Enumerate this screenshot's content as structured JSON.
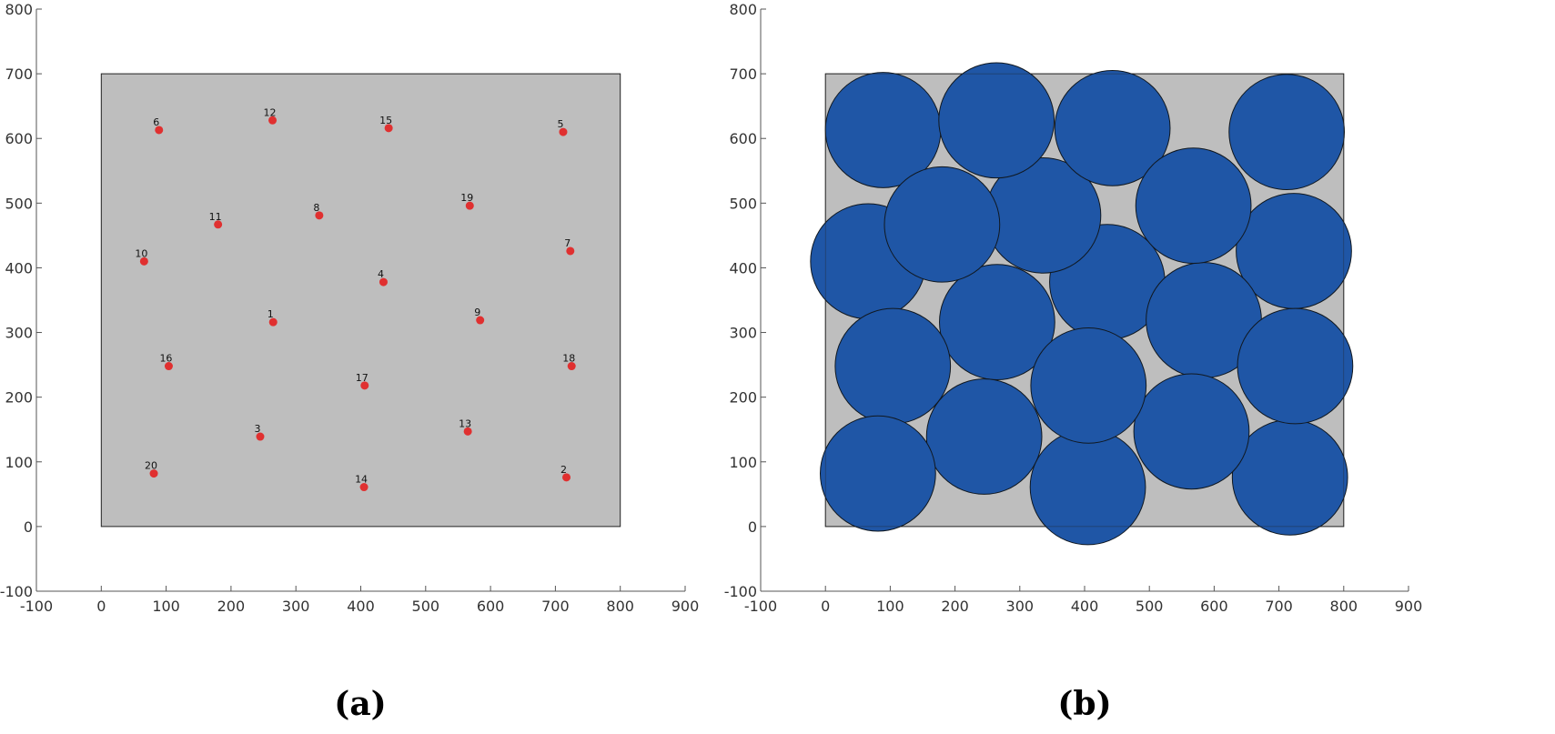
{
  "chart_data": [
    {
      "type": "scatter",
      "caption": "(a)",
      "xlim": [
        -100,
        900
      ],
      "ylim": [
        -100,
        800
      ],
      "x_ticks": [
        "-100",
        "0",
        "100",
        "200",
        "300",
        "400",
        "500",
        "600",
        "700",
        "800",
        "900"
      ],
      "y_ticks": [
        "-100",
        "0",
        "100",
        "200",
        "300",
        "400",
        "500",
        "600",
        "700",
        "800"
      ],
      "grid": false,
      "region": {
        "x": [
          0,
          800
        ],
        "y": [
          0,
          700
        ],
        "fill": "#bebebe"
      },
      "marker_color": "#e03030",
      "points": [
        {
          "label": "1",
          "x": 265,
          "y": 316
        },
        {
          "label": "2",
          "x": 717,
          "y": 76
        },
        {
          "label": "3",
          "x": 245,
          "y": 139
        },
        {
          "label": "4",
          "x": 435,
          "y": 378
        },
        {
          "label": "5",
          "x": 712,
          "y": 610
        },
        {
          "label": "6",
          "x": 89,
          "y": 613
        },
        {
          "label": "7",
          "x": 723,
          "y": 426
        },
        {
          "label": "8",
          "x": 336,
          "y": 481
        },
        {
          "label": "9",
          "x": 584,
          "y": 319
        },
        {
          "label": "10",
          "x": 66,
          "y": 410
        },
        {
          "label": "11",
          "x": 180,
          "y": 467
        },
        {
          "label": "12",
          "x": 264,
          "y": 628
        },
        {
          "label": "13",
          "x": 565,
          "y": 147
        },
        {
          "label": "14",
          "x": 405,
          "y": 61
        },
        {
          "label": "15",
          "x": 443,
          "y": 616
        },
        {
          "label": "16",
          "x": 104,
          "y": 248
        },
        {
          "label": "17",
          "x": 406,
          "y": 218
        },
        {
          "label": "18",
          "x": 725,
          "y": 248
        },
        {
          "label": "19",
          "x": 568,
          "y": 496
        },
        {
          "label": "20",
          "x": 81,
          "y": 82
        }
      ]
    },
    {
      "type": "scatter",
      "caption": "(b)",
      "xlim": [
        -100,
        900
      ],
      "ylim": [
        -100,
        800
      ],
      "x_ticks": [
        "-100",
        "0",
        "100",
        "200",
        "300",
        "400",
        "500",
        "600",
        "700",
        "800",
        "900"
      ],
      "y_ticks": [
        "-100",
        "0",
        "100",
        "200",
        "300",
        "400",
        "500",
        "600",
        "700",
        "800"
      ],
      "grid": false,
      "region": {
        "x": [
          0,
          800
        ],
        "y": [
          0,
          700
        ],
        "fill": "#bebebe"
      },
      "circle_color": "#1f56a6",
      "circle_radius": 89,
      "circles": [
        {
          "x": 265,
          "y": 316
        },
        {
          "x": 717,
          "y": 76
        },
        {
          "x": 245,
          "y": 139
        },
        {
          "x": 435,
          "y": 378
        },
        {
          "x": 712,
          "y": 610
        },
        {
          "x": 89,
          "y": 613
        },
        {
          "x": 723,
          "y": 426
        },
        {
          "x": 336,
          "y": 481
        },
        {
          "x": 584,
          "y": 319
        },
        {
          "x": 66,
          "y": 410
        },
        {
          "x": 180,
          "y": 467
        },
        {
          "x": 264,
          "y": 628
        },
        {
          "x": 565,
          "y": 147
        },
        {
          "x": 405,
          "y": 61
        },
        {
          "x": 443,
          "y": 616
        },
        {
          "x": 104,
          "y": 248
        },
        {
          "x": 406,
          "y": 218
        },
        {
          "x": 725,
          "y": 248
        },
        {
          "x": 568,
          "y": 496
        },
        {
          "x": 81,
          "y": 82
        }
      ]
    }
  ]
}
